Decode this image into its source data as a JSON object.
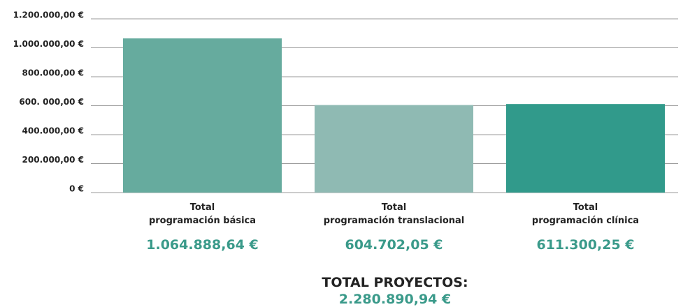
{
  "chart_data": {
    "type": "bar",
    "categories": [
      "Total\nprogramación básica",
      "Total\nprogramación translacional",
      "Total\nprogramación clínica"
    ],
    "values": [
      1064888.64,
      604702.05,
      611300.25
    ],
    "value_labels": [
      "1.064.888,64 €",
      "604.702,05 €",
      "611.300,25 €"
    ],
    "colors": [
      "#66ab9e",
      "#8fbab3",
      "#319a8b"
    ],
    "ylim": [
      0,
      1200000
    ],
    "yticks": [
      {
        "value": 0,
        "label": "0 €"
      },
      {
        "value": 200000,
        "label": "200.000,00 €"
      },
      {
        "value": 400000,
        "label": "400.000,00 €"
      },
      {
        "value": 600000,
        "label": "600. 000,00 €"
      },
      {
        "value": 800000,
        "label": "800.000,00 €"
      },
      {
        "value": 1000000,
        "label": "1.000.000,00 €"
      },
      {
        "value": 1200000,
        "label": "1.200.000,00 €"
      }
    ],
    "grid": true,
    "total_label": "TOTAL PROYECTOS:",
    "total_value": "2.280.890,94 €"
  }
}
